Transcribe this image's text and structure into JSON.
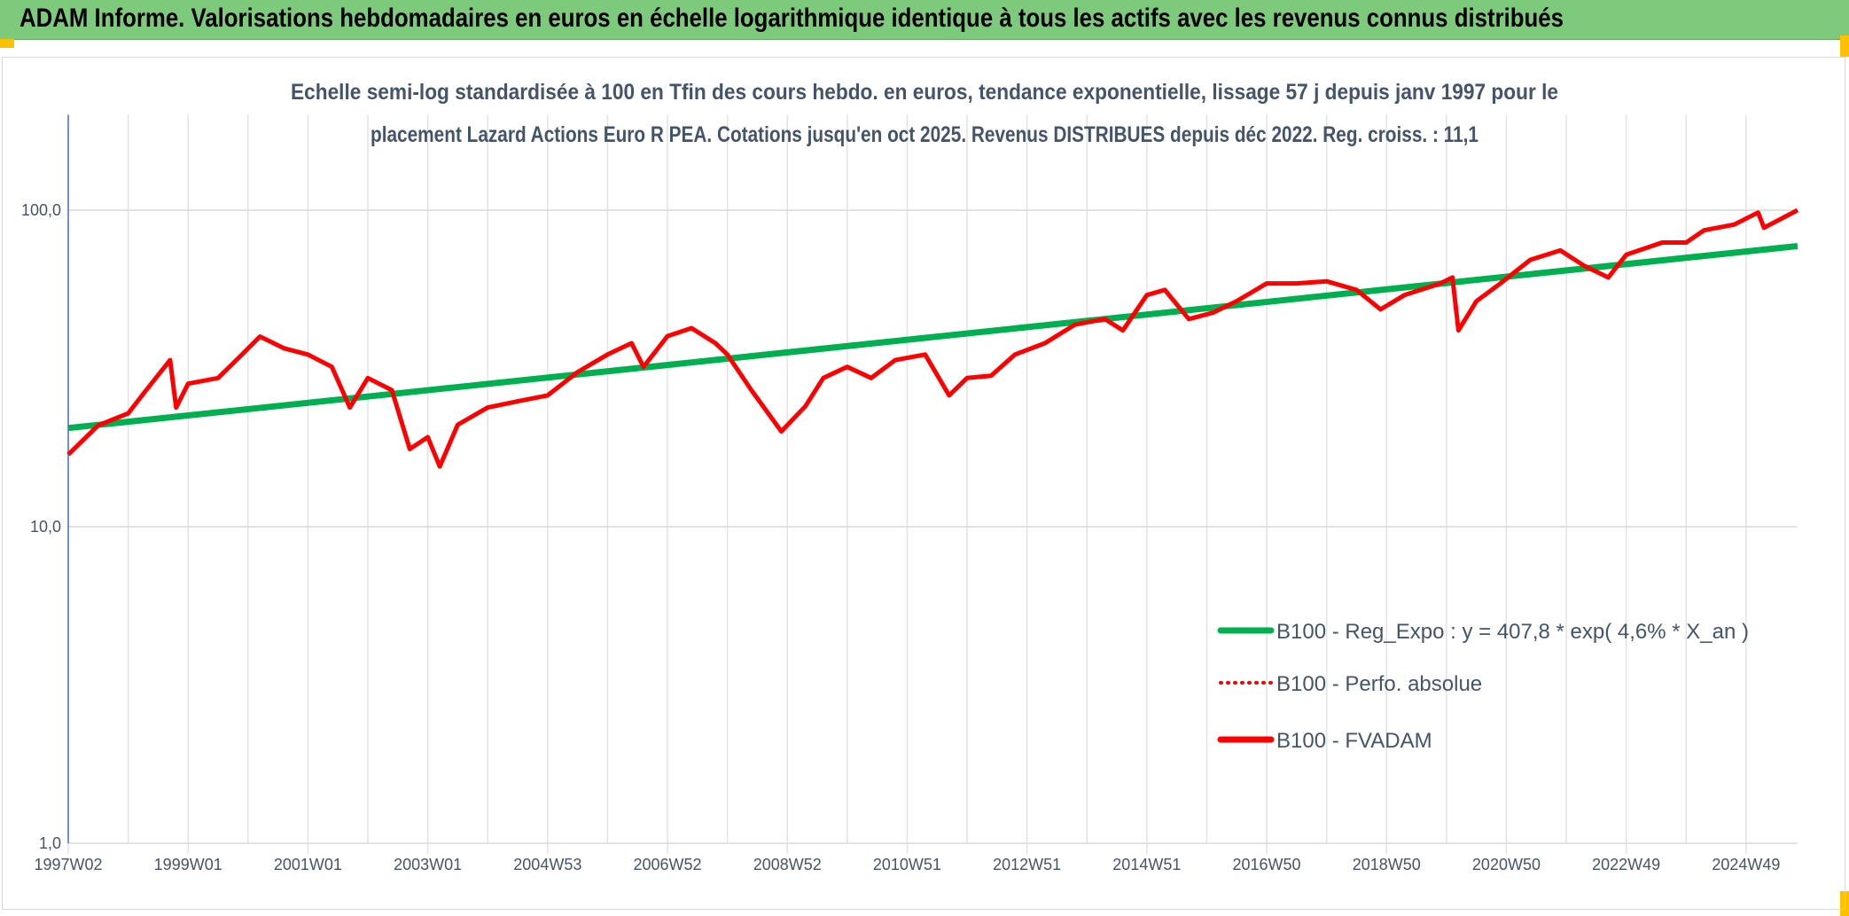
{
  "header": {
    "title": "ADAM Informe. Valorisations hebdomadaires en euros en échelle logarithmique identique à tous les actifs avec les revenus connus distribués"
  },
  "chart_data": {
    "type": "line",
    "title_lines": [
      "Echelle semi-log standardisée à 100 en Tfin des cours hebdo. en euros, tendance exponentielle, lissage 57 j depuis janv 1997 pour le",
      "placement Lazard Actions Euro R PEA. Cotations jusqu'en oct 2025. Revenus DISTRIBUES depuis déc 2022. Reg. croiss. : 11,1"
    ],
    "y_scale": "log",
    "ylim": [
      1,
      200
    ],
    "y_ticks": [
      {
        "value": 1,
        "label": "1,0"
      },
      {
        "value": 10,
        "label": "10,0"
      },
      {
        "value": 100,
        "label": "100,0"
      }
    ],
    "xlim": [
      1997.0,
      2025.86
    ],
    "x_ticks": [
      {
        "value": 1997.0,
        "label": "1997W02"
      },
      {
        "value": 1999.0,
        "label": "1999W01"
      },
      {
        "value": 2001.0,
        "label": "2001W01"
      },
      {
        "value": 2003.0,
        "label": "2003W01"
      },
      {
        "value": 2005.0,
        "label": "2004W53"
      },
      {
        "value": 2007.0,
        "label": "2006W52"
      },
      {
        "value": 2009.0,
        "label": "2008W52"
      },
      {
        "value": 2011.0,
        "label": "2010W51"
      },
      {
        "value": 2013.0,
        "label": "2012W51"
      },
      {
        "value": 2015.0,
        "label": "2014W51"
      },
      {
        "value": 2017.0,
        "label": "2016W50"
      },
      {
        "value": 2019.0,
        "label": "2018W50"
      },
      {
        "value": 2021.0,
        "label": "2020W50"
      },
      {
        "value": 2023.0,
        "label": "2022W49"
      },
      {
        "value": 2025.0,
        "label": "2024W49"
      }
    ],
    "legend_position": "bottom-right",
    "series": [
      {
        "name": "B100 - Reg_Expo : y = 407,8 * exp( 4,6% *  X_an )",
        "color": "#00b050",
        "style": "solid",
        "x": [
          1997.0,
          2025.86
        ],
        "y": [
          20.5,
          77.0
        ]
      },
      {
        "name": "B100 - Perfo. absolue",
        "color": "#ff0000",
        "style": "dotted",
        "x": [],
        "y": []
      },
      {
        "name": "B100 - FVADAM",
        "color": "#ff0000",
        "style": "solid",
        "x": [
          1997.0,
          1997.5,
          1998.0,
          1998.3,
          1998.7,
          1998.8,
          1999.0,
          1999.5,
          1999.9,
          2000.2,
          2000.6,
          2001.0,
          2001.4,
          2001.7,
          2002.0,
          2002.4,
          2002.7,
          2003.0,
          2003.2,
          2003.5,
          2004.0,
          2004.5,
          2005.0,
          2005.5,
          2006.0,
          2006.4,
          2006.6,
          2007.0,
          2007.4,
          2007.8,
          2008.0,
          2008.4,
          2008.9,
          2009.3,
          2009.6,
          2010.0,
          2010.4,
          2010.8,
          2011.3,
          2011.7,
          2012.0,
          2012.4,
          2012.8,
          2013.3,
          2013.8,
          2014.3,
          2014.6,
          2015.0,
          2015.3,
          2015.7,
          2016.1,
          2016.5,
          2017.0,
          2017.5,
          2018.0,
          2018.5,
          2018.9,
          2019.3,
          2019.9,
          2020.1,
          2020.2,
          2020.5,
          2020.9,
          2021.4,
          2021.9,
          2022.3,
          2022.7,
          2023.0,
          2023.6,
          2024.0,
          2024.3,
          2024.8,
          2025.2,
          2025.3,
          2025.86
        ],
        "y": [
          16.9,
          20.9,
          22.8,
          27,
          33.6,
          23.8,
          28.3,
          29.5,
          35,
          39.9,
          36.6,
          35,
          32,
          23.8,
          29.5,
          27,
          17.6,
          19.2,
          15.5,
          21,
          23.8,
          24.9,
          26,
          30.8,
          35,
          38,
          32,
          40,
          42.4,
          38,
          35,
          27,
          20,
          24,
          29.5,
          32,
          29.5,
          33.6,
          35,
          26,
          29.5,
          30,
          35,
          38,
          43.5,
          45.3,
          41.7,
          53.9,
          56,
          45.3,
          47.4,
          51.6,
          58.7,
          58.7,
          59.6,
          56,
          48.6,
          53.9,
          58.7,
          61.3,
          41.7,
          51.6,
          58.7,
          69.7,
          74.6,
          66.7,
          61.3,
          72.3,
          79,
          79,
          86.4,
          90,
          98.3,
          88,
          100
        ]
      }
    ]
  }
}
